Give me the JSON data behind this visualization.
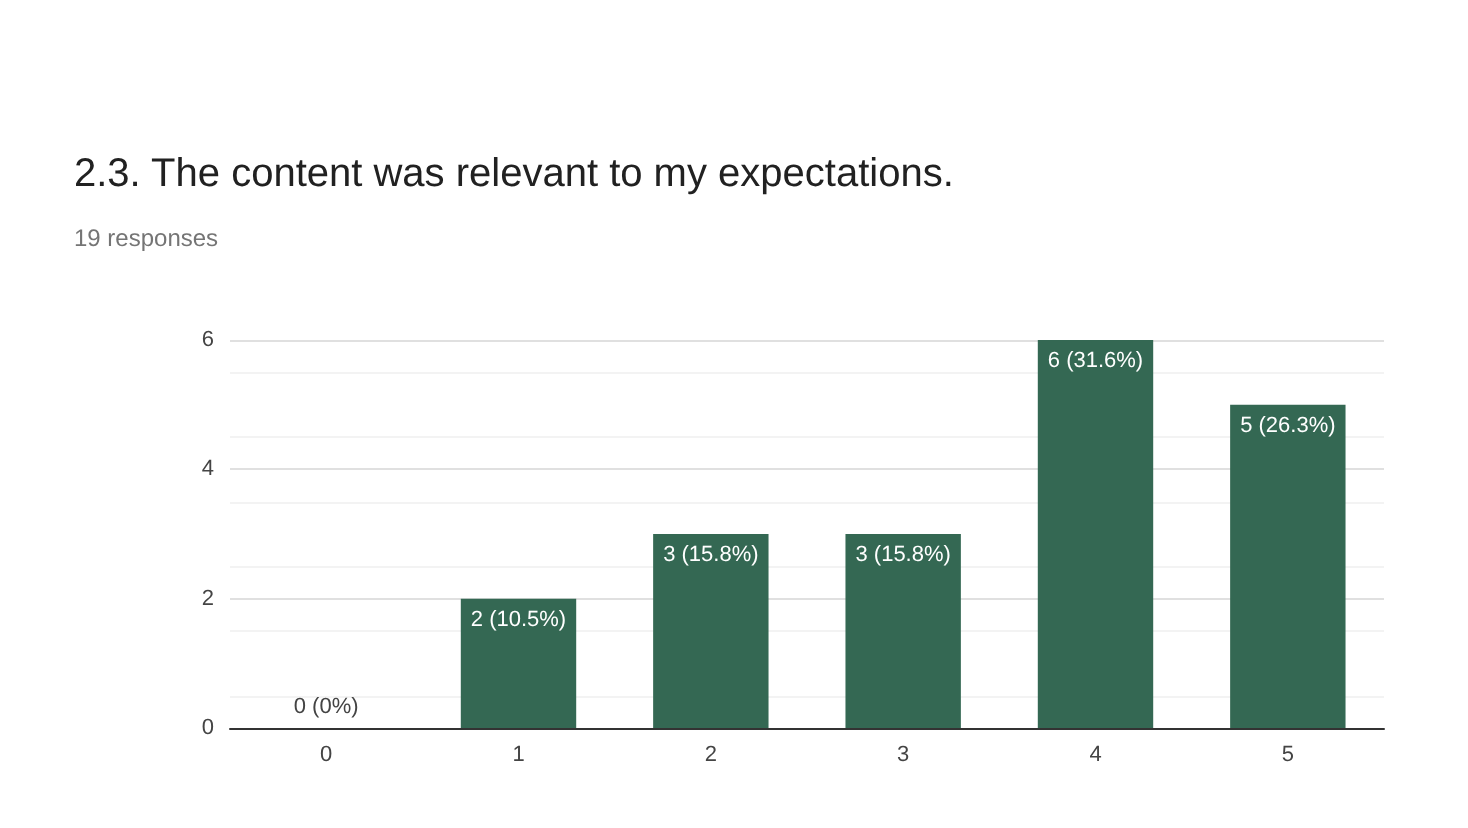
{
  "chart_data": {
    "type": "bar",
    "title": "2.3. The content was relevant to my expectations.",
    "subtitle": "19 responses",
    "categories": [
      "0",
      "1",
      "2",
      "3",
      "4",
      "5"
    ],
    "values": [
      0,
      2,
      3,
      3,
      6,
      5
    ],
    "value_labels": [
      "0 (0%)",
      "2 (10.5%)",
      "3 (15.8%)",
      "3 (15.8%)",
      "6 (31.6%)",
      "5 (26.3%)"
    ],
    "color": "#346853",
    "ylim": [
      0,
      6
    ],
    "yticks": [
      0,
      2,
      4,
      6
    ],
    "grid": true
  }
}
